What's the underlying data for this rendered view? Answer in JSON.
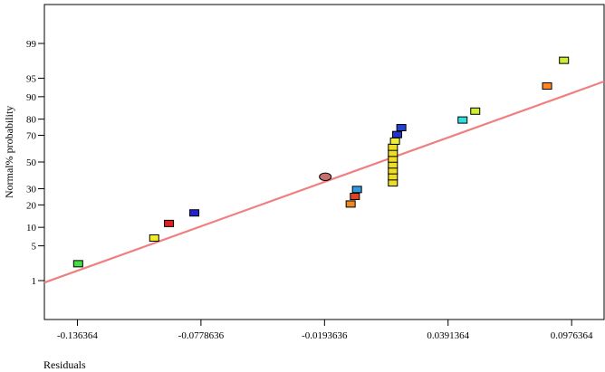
{
  "chart_data": {
    "type": "scatter",
    "title": "",
    "xlabel": "Residuals",
    "ylabel": "Normal% probability",
    "x_ticks": [
      -0.136364,
      -0.0778636,
      -0.0193636,
      0.0391364,
      0.0976364
    ],
    "x_tick_labels": [
      "-0.136364",
      "-0.0778636",
      "-0.0193636",
      "0.0391364",
      "0.0976364"
    ],
    "xlim": [
      -0.152,
      0.113
    ],
    "y_scale": "normal-probability",
    "y_ticks": [
      1,
      5,
      10,
      20,
      30,
      50,
      70,
      80,
      90,
      95,
      99
    ],
    "y_tick_labels": [
      "1",
      "5",
      "10",
      "20",
      "30",
      "50",
      "70",
      "80",
      "90",
      "95",
      "99"
    ],
    "ylim": [
      0.1,
      99.9
    ],
    "grid": false,
    "points": [
      {
        "x": -0.136,
        "y": 2.3,
        "color": "#44dd44",
        "shape": "square"
      },
      {
        "x": -0.1,
        "y": 6.8,
        "color": "#eeee22",
        "shape": "square"
      },
      {
        "x": -0.093,
        "y": 11.4,
        "color": "#dd2222",
        "shape": "square"
      },
      {
        "x": -0.081,
        "y": 15.9,
        "color": "#2222cc",
        "shape": "square"
      },
      {
        "x": -0.019,
        "y": 38.6,
        "color": "#c87070",
        "shape": "circle"
      },
      {
        "x": -0.007,
        "y": 20.5,
        "color": "#ee8822",
        "shape": "square"
      },
      {
        "x": -0.005,
        "y": 25.0,
        "color": "#dd4422",
        "shape": "square"
      },
      {
        "x": -0.004,
        "y": 29.5,
        "color": "#3399dd",
        "shape": "square"
      },
      {
        "x": 0.013,
        "y": 34.1,
        "color": "#eedd22",
        "shape": "square"
      },
      {
        "x": 0.013,
        "y": 38.6,
        "color": "#eedd22",
        "shape": "square"
      },
      {
        "x": 0.013,
        "y": 43.2,
        "color": "#eedd22",
        "shape": "square"
      },
      {
        "x": 0.013,
        "y": 47.7,
        "color": "#eedd22",
        "shape": "square"
      },
      {
        "x": 0.013,
        "y": 52.3,
        "color": "#eedd22",
        "shape": "square"
      },
      {
        "x": 0.013,
        "y": 56.8,
        "color": "#eedd22",
        "shape": "square"
      },
      {
        "x": 0.013,
        "y": 61.4,
        "color": "#eedd22",
        "shape": "square"
      },
      {
        "x": 0.014,
        "y": 65.9,
        "color": "#eeee33",
        "shape": "square"
      },
      {
        "x": 0.015,
        "y": 70.5,
        "color": "#2233cc",
        "shape": "square"
      },
      {
        "x": 0.017,
        "y": 75.0,
        "color": "#2244cc",
        "shape": "square"
      },
      {
        "x": 0.046,
        "y": 79.5,
        "color": "#33dddd",
        "shape": "square"
      },
      {
        "x": 0.052,
        "y": 84.1,
        "color": "#ccee33",
        "shape": "square"
      },
      {
        "x": 0.086,
        "y": 93.2,
        "color": "#ff8822",
        "shape": "square"
      },
      {
        "x": 0.094,
        "y": 97.7,
        "color": "#ccee33",
        "shape": "square"
      }
    ],
    "fit_line": {
      "color": "#f08080",
      "x": [
        -0.152,
        0.113
      ],
      "y": [
        0.9,
        94.3
      ]
    }
  }
}
